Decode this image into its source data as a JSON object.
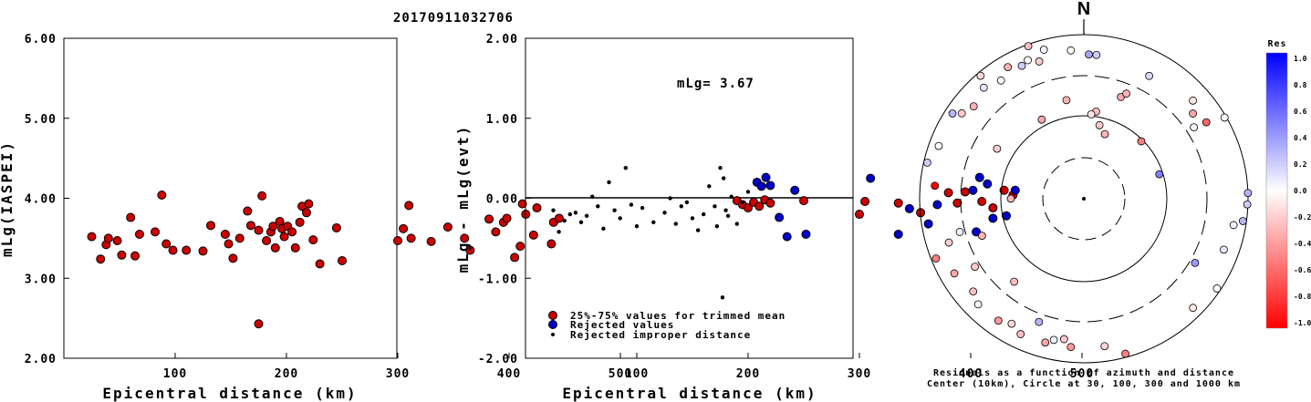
{
  "title": "20170911032706",
  "chart_data": [
    {
      "type": "scatter",
      "id": "magnitude-vs-distance",
      "xlabel": "Epicentral distance (km)",
      "ylabel": "mLg(IASPEI)",
      "xlim": [
        0,
        600
      ],
      "ylim": [
        2.0,
        6.0
      ],
      "xticks": [
        "100",
        "200",
        "300",
        "400",
        "500"
      ],
      "yticks": [
        "2.00",
        "3.00",
        "4.00",
        "5.00",
        "6.00"
      ],
      "series": [
        {
          "color": "#cc0000",
          "points": [
            [
              25,
              3.52
            ],
            [
              33,
              3.24
            ],
            [
              38,
              3.42
            ],
            [
              40,
              3.5
            ],
            [
              48,
              3.47
            ],
            [
              52,
              3.29
            ],
            [
              60,
              3.76
            ],
            [
              64,
              3.28
            ],
            [
              68,
              3.55
            ],
            [
              82,
              3.58
            ],
            [
              88,
              4.04
            ],
            [
              92,
              3.43
            ],
            [
              98,
              3.35
            ],
            [
              110,
              3.35
            ],
            [
              125,
              3.34
            ],
            [
              132,
              3.66
            ],
            [
              145,
              3.55
            ],
            [
              148,
              3.43
            ],
            [
              152,
              3.25
            ],
            [
              158,
              3.5
            ],
            [
              165,
              3.84
            ],
            [
              168,
              3.66
            ],
            [
              175,
              3.6
            ],
            [
              178,
              4.03
            ],
            [
              182,
              3.47
            ],
            [
              186,
              3.58
            ],
            [
              188,
              3.65
            ],
            [
              190,
              3.38
            ],
            [
              194,
              3.71
            ],
            [
              196,
              3.62
            ],
            [
              198,
              3.52
            ],
            [
              201,
              3.65
            ],
            [
              205,
              3.58
            ],
            [
              208,
              3.38
            ],
            [
              212,
              3.7
            ],
            [
              214,
              3.9
            ],
            [
              218,
              3.82
            ],
            [
              220,
              3.93
            ],
            [
              224,
              3.48
            ],
            [
              230,
              3.18
            ],
            [
              245,
              3.63
            ],
            [
              250,
              3.22
            ],
            [
              300,
              3.47
            ],
            [
              305,
              3.62
            ],
            [
              310,
              3.91
            ],
            [
              312,
              3.5
            ],
            [
              330,
              3.46
            ],
            [
              345,
              3.64
            ],
            [
              360,
              3.5
            ],
            [
              365,
              3.35
            ],
            [
              382,
              3.74
            ],
            [
              388,
              3.58
            ],
            [
              395,
              3.7
            ],
            [
              398,
              3.75
            ],
            [
              405,
              3.26
            ],
            [
              410,
              3.4
            ],
            [
              412,
              3.93
            ],
            [
              415,
              3.8
            ],
            [
              422,
              3.54
            ],
            [
              425,
              3.88
            ],
            [
              438,
              3.43
            ],
            [
              440,
              3.7
            ],
            [
              445,
              3.75
            ],
            [
              175,
              2.43
            ]
          ]
        }
      ]
    },
    {
      "type": "scatter",
      "id": "residual-vs-distance",
      "xlabel": "Epicentral distance (km)",
      "ylabel": "mLg - mLg(evt)",
      "xlim": [
        0,
        600
      ],
      "ylim": [
        -2.0,
        2.0
      ],
      "xticks": [
        "100",
        "200",
        "300",
        "400",
        "500"
      ],
      "yticks": [
        "-2.00",
        "-1.00",
        "0.00",
        "1.00",
        "2.00"
      ],
      "annotation": "mLg= 3.67",
      "hline": 0,
      "series": [
        {
          "name": "25%-75% values for trimmed mean",
          "color": "#cc0000",
          "marker": "circle",
          "points": [
            [
              190,
              -0.03
            ],
            [
              195,
              -0.08
            ],
            [
              200,
              -0.12
            ],
            [
              205,
              -0.05
            ],
            [
              210,
              -0.1
            ],
            [
              215,
              -0.02
            ],
            [
              220,
              -0.06
            ],
            [
              250,
              -0.03
            ],
            [
              300,
              -0.2
            ],
            [
              305,
              -0.04
            ],
            [
              335,
              -0.06
            ],
            [
              355,
              -0.18
            ],
            [
              380,
              0.07
            ],
            [
              388,
              -0.06
            ],
            [
              395,
              0.08
            ],
            [
              410,
              -0.04
            ],
            [
              420,
              -0.12
            ],
            [
              430,
              0.1
            ],
            [
              438,
              0.04
            ]
          ]
        },
        {
          "name": "Rejected values",
          "color": "#0000cc",
          "marker": "circle",
          "points": [
            [
              208,
              0.2
            ],
            [
              212,
              0.15
            ],
            [
              216,
              0.26
            ],
            [
              220,
              0.16
            ],
            [
              228,
              -0.24
            ],
            [
              235,
              -0.48
            ],
            [
              242,
              0.1
            ],
            [
              252,
              -0.45
            ],
            [
              310,
              0.25
            ],
            [
              335,
              -0.45
            ],
            [
              345,
              -0.13
            ],
            [
              362,
              -0.32
            ],
            [
              370,
              -0.08
            ],
            [
              402,
              0.1
            ],
            [
              405,
              -0.42
            ],
            [
              408,
              0.26
            ],
            [
              415,
              0.18
            ],
            [
              420,
              -0.25
            ],
            [
              432,
              -0.22
            ],
            [
              440,
              0.1
            ]
          ]
        },
        {
          "name": "Rejected improper distance",
          "color": "#000000",
          "marker": "dot",
          "points": [
            [
              25,
              -0.15
            ],
            [
              30,
              -0.42
            ],
            [
              35,
              -0.28
            ],
            [
              40,
              -0.2
            ],
            [
              45,
              -0.18
            ],
            [
              50,
              -0.3
            ],
            [
              55,
              -0.22
            ],
            [
              60,
              0.02
            ],
            [
              65,
              -0.1
            ],
            [
              70,
              -0.38
            ],
            [
              75,
              0.2
            ],
            [
              80,
              -0.15
            ],
            [
              85,
              -0.25
            ],
            [
              90,
              0.38
            ],
            [
              95,
              -0.08
            ],
            [
              100,
              -0.35
            ],
            [
              105,
              -0.12
            ],
            [
              115,
              -0.3
            ],
            [
              125,
              -0.18
            ],
            [
              130,
              0.0
            ],
            [
              135,
              -0.32
            ],
            [
              140,
              -0.1
            ],
            [
              145,
              -0.05
            ],
            [
              150,
              -0.25
            ],
            [
              155,
              -0.4
            ],
            [
              160,
              -0.2
            ],
            [
              165,
              0.15
            ],
            [
              170,
              -0.1
            ],
            [
              172,
              -0.35
            ],
            [
              175,
              0.38
            ],
            [
              178,
              0.25
            ],
            [
              180,
              -0.15
            ],
            [
              182,
              -0.22
            ],
            [
              185,
              0.02
            ],
            [
              190,
              -0.32
            ],
            [
              195,
              -0.05
            ],
            [
              200,
              0.08
            ],
            [
              177,
              -1.24
            ]
          ]
        }
      ]
    },
    {
      "type": "polar-scatter",
      "id": "residual-azimuth-map",
      "north_label": "N",
      "caption_lines": [
        "Residuals as a function of azimuth and distance",
        "Center (10km), Circle at 30, 100, 300 and 1000 km"
      ],
      "rings": [
        {
          "distance_km": 30,
          "style": "dashed"
        },
        {
          "distance_km": 100,
          "style": "solid"
        },
        {
          "distance_km": 300,
          "style": "dashed"
        },
        {
          "distance_km": 1000,
          "style": "solid"
        }
      ],
      "points": [
        {
          "azimuth_deg": 2,
          "distance_km": 560,
          "residual": 0.35
        },
        {
          "azimuth_deg": 5,
          "distance_km": 560,
          "residual": 0.2
        },
        {
          "azimuth_deg": 8,
          "distance_km": 115,
          "residual": -0.25
        },
        {
          "azimuth_deg": 5,
          "distance_km": 105,
          "residual": -0.1
        },
        {
          "azimuth_deg": 12,
          "distance_km": 80,
          "residual": -0.2
        },
        {
          "azimuth_deg": 18,
          "distance_km": 65,
          "residual": -0.3
        },
        {
          "azimuth_deg": 20,
          "distance_km": 200,
          "residual": -0.35
        },
        {
          "azimuth_deg": 22,
          "distance_km": 230,
          "residual": -0.3
        },
        {
          "azimuth_deg": 28,
          "distance_km": 480,
          "residual": 0.15
        },
        {
          "azimuth_deg": 48,
          "distance_km": 600,
          "residual": -0.1
        },
        {
          "azimuth_deg": 52,
          "distance_km": 470,
          "residual": -0.35
        },
        {
          "azimuth_deg": 58,
          "distance_km": 560,
          "residual": -0.6
        },
        {
          "azimuth_deg": 57,
          "distance_km": 380,
          "residual": 0.05
        },
        {
          "azimuth_deg": 60,
          "distance_km": 950,
          "residual": 0.0
        },
        {
          "azimuth_deg": 45,
          "distance_km": 95,
          "residual": -0.5
        },
        {
          "azimuth_deg": 72,
          "distance_km": 90,
          "residual": 0.5
        },
        {
          "azimuth_deg": 88,
          "distance_km": 1000,
          "residual": 0.3
        },
        {
          "azimuth_deg": 92,
          "distance_km": 980,
          "residual": 0.2
        },
        {
          "azimuth_deg": 98,
          "distance_km": 900,
          "residual": 0.3
        },
        {
          "azimuth_deg": 100,
          "distance_km": 700,
          "residual": 0.05
        },
        {
          "azimuth_deg": 120,
          "distance_km": 350,
          "residual": 0.4
        },
        {
          "azimuth_deg": 110,
          "distance_km": 640,
          "residual": 0.1
        },
        {
          "azimuth_deg": 124,
          "distance_km": 900,
          "residual": 0.0
        },
        {
          "azimuth_deg": 135,
          "distance_km": 750,
          "residual": -0.1
        },
        {
          "azimuth_deg": 165,
          "distance_km": 900,
          "residual": -0.5
        },
        {
          "azimuth_deg": 172,
          "distance_km": 640,
          "residual": -0.15
        },
        {
          "azimuth_deg": 185,
          "distance_km": 640,
          "residual": -0.4
        },
        {
          "azimuth_deg": 188,
          "distance_km": 520,
          "residual": -0.2
        },
        {
          "azimuth_deg": 192,
          "distance_km": 560,
          "residual": 0.05
        },
        {
          "azimuth_deg": 195,
          "distance_km": 640,
          "residual": -0.35
        },
        {
          "azimuth_deg": 200,
          "distance_km": 380,
          "residual": 0.3
        },
        {
          "azimuth_deg": 205,
          "distance_km": 650,
          "residual": -0.25
        },
        {
          "azimuth_deg": 210,
          "distance_km": 560,
          "residual": -0.15
        },
        {
          "azimuth_deg": 215,
          "distance_km": 640,
          "residual": -0.4
        },
        {
          "azimuth_deg": 220,
          "distance_km": 200,
          "residual": -0.25
        },
        {
          "azimuth_deg": 225,
          "distance_km": 650,
          "residual": 0.05
        },
        {
          "azimuth_deg": 230,
          "distance_km": 560,
          "residual": -0.25
        },
        {
          "azimuth_deg": 238,
          "distance_km": 350,
          "residual": -0.2
        },
        {
          "azimuth_deg": 240,
          "distance_km": 650,
          "residual": -0.35
        },
        {
          "azimuth_deg": 248,
          "distance_km": 870,
          "residual": -0.5
        },
        {
          "azimuth_deg": 250,
          "distance_km": 200,
          "residual": -0.3
        },
        {
          "azimuth_deg": 252,
          "distance_km": 520,
          "residual": -0.2
        },
        {
          "azimuth_deg": 255,
          "distance_km": 350,
          "residual": 0.05
        },
        {
          "azimuth_deg": 270,
          "distance_km": 75,
          "residual": -0.3
        },
        {
          "azimuth_deg": 275,
          "distance_km": 650,
          "residual": -1.0
        },
        {
          "azimuth_deg": 283,
          "distance_km": 900,
          "residual": 0.2
        },
        {
          "azimuth_deg": 290,
          "distance_km": 750,
          "residual": 0.0
        },
        {
          "azimuth_deg": 300,
          "distance_km": 160,
          "residual": -0.2
        },
        {
          "azimuth_deg": 303,
          "distance_km": 800,
          "residual": 0.3
        },
        {
          "azimuth_deg": 305,
          "distance_km": 640,
          "residual": -0.2
        },
        {
          "azimuth_deg": 310,
          "distance_km": 550,
          "residual": -0.3
        },
        {
          "azimuth_deg": 318,
          "distance_km": 650,
          "residual": 0.1
        },
        {
          "azimuth_deg": 320,
          "distance_km": 900,
          "residual": -0.15
        },
        {
          "azimuth_deg": 325,
          "distance_km": 560,
          "residual": 0.0
        },
        {
          "azimuth_deg": 330,
          "distance_km": 700,
          "residual": -0.3
        },
        {
          "azimuth_deg": 332,
          "distance_km": 120,
          "residual": -0.35
        },
        {
          "azimuth_deg": 335,
          "distance_km": 600,
          "residual": 0.2
        },
        {
          "azimuth_deg": 338,
          "distance_km": 650,
          "residual": 0.0
        },
        {
          "azimuth_deg": 340,
          "distance_km": 950,
          "residual": -0.25
        },
        {
          "azimuth_deg": 342,
          "distance_km": 560,
          "residual": -0.2
        },
        {
          "azimuth_deg": 345,
          "distance_km": 750,
          "residual": 0.05
        },
        {
          "azimuth_deg": 350,
          "distance_km": 160,
          "residual": -0.3
        },
        {
          "azimuth_deg": 355,
          "distance_km": 640,
          "residual": 0.0
        }
      ],
      "colorbar": {
        "label": "Res",
        "range": [
          -1.0,
          1.0
        ],
        "ticks": [
          "1.0",
          "0.8",
          "0.6",
          "0.4",
          "0.2",
          "0.0",
          "-0.2",
          "-0.4",
          "-0.6",
          "-0.8",
          "-1.0"
        ],
        "negative_color": "#ff0000",
        "positive_color": "#0000ff",
        "neutral_color": "#ffffff"
      }
    }
  ]
}
